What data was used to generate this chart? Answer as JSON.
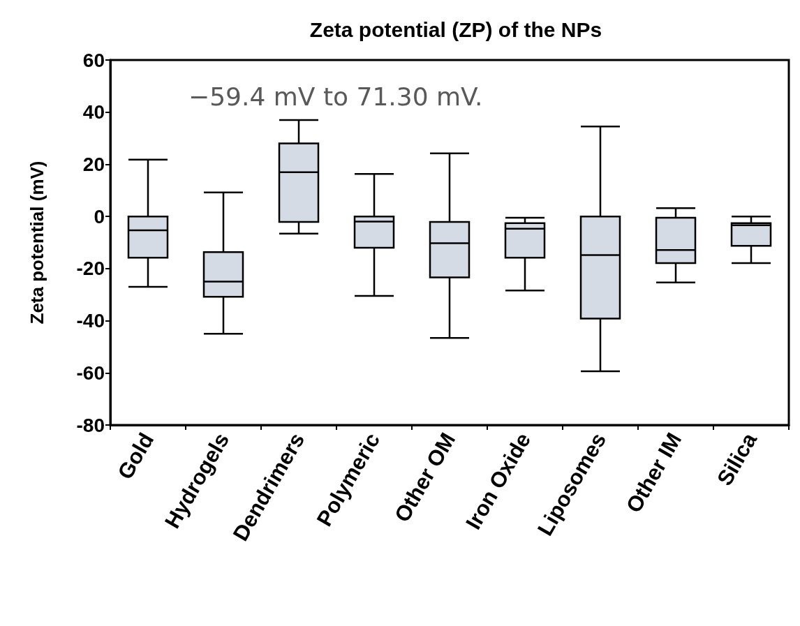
{
  "chart_data": {
    "type": "box",
    "title": "Zeta potential (ZP) of the NPs",
    "ylabel": "Zeta potential (mV)",
    "categories": [
      "Gold",
      "Hydrogels",
      "Dendrimers",
      "Polymeric",
      "Other OM",
      "Iron Oxide",
      "Liposomes",
      "Other IM",
      "Silica"
    ],
    "series": [
      {
        "color": "#d5dbe4",
        "boxes": [
          {
            "low": -27,
            "q1": -15.8,
            "median": -5.3,
            "q3": 0,
            "high": 21.8
          },
          {
            "low": -45,
            "q1": -30.8,
            "median": -25,
            "q3": -13.7,
            "high": 9.2
          },
          {
            "low": -6.6,
            "q1": -2.1,
            "median": 17,
            "q3": 28,
            "high": 37
          },
          {
            "low": -30.5,
            "q1": -12,
            "median": -2,
            "q3": 0,
            "high": 16.3
          },
          {
            "low": -46.6,
            "q1": -23.4,
            "median": -10.3,
            "q3": -2.1,
            "high": 24.2
          },
          {
            "low": -28.4,
            "q1": -15.8,
            "median": -4.7,
            "q3": -2.6,
            "high": -0.5
          },
          {
            "low": -59.4,
            "q1": -39.2,
            "median": -14.8,
            "q3": 0,
            "high": 34.5
          },
          {
            "low": -25.3,
            "q1": -17.9,
            "median": -12.9,
            "q3": -0.5,
            "high": 3.2
          },
          {
            "low": -17.9,
            "q1": -11.3,
            "median": -3.4,
            "q3": -2.6,
            "high": 0
          }
        ]
      }
    ],
    "ylim": [
      -80,
      60
    ],
    "yticks": [
      -80,
      -60,
      -40,
      -20,
      0,
      20,
      40,
      60
    ],
    "annotations": [
      "−59.4 mV to 71.30 mV."
    ]
  }
}
